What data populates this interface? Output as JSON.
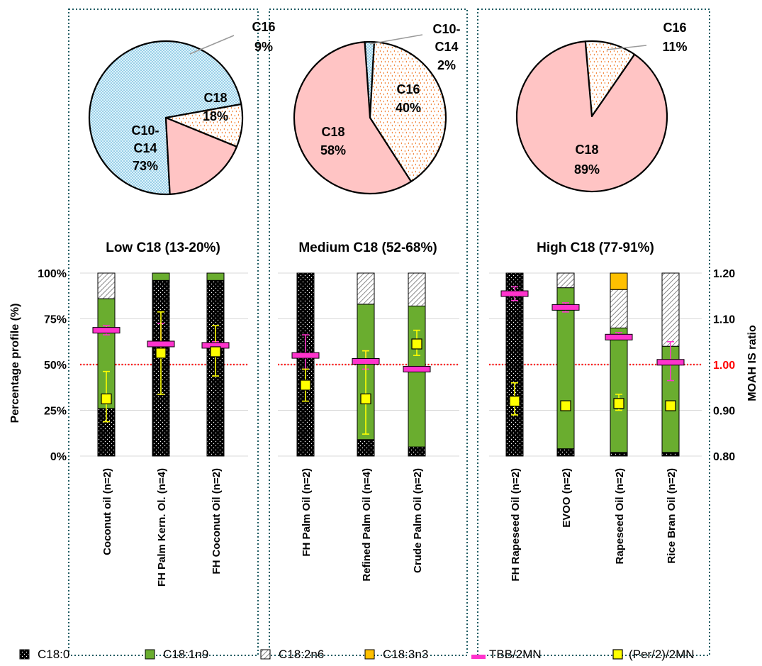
{
  "chart_data": {
    "type": "composite",
    "colors": {
      "C18": "#ffc4c4",
      "C16": "#ffffff",
      "C16_dots": "#f07b2a",
      "C10C14": "#ddf2fb",
      "C10C14_dots": "#4aa8d2",
      "black": "#000000",
      "green": "#6aad2f",
      "hatch": "#7f7f7f",
      "orange": "#ffc000",
      "magenta": "#ff33cc",
      "yellow": "#ffff00",
      "panel_border": "#1f5c63",
      "ref_line": "#ff0000"
    },
    "pies": [
      {
        "slices": [
          {
            "key": "C10C14",
            "label": "C10-\nC14",
            "pct_label": "73%",
            "value": 73
          },
          {
            "key": "C16",
            "label": "C16",
            "pct_label": "9%",
            "value": 9
          },
          {
            "key": "C18",
            "label": "C18",
            "pct_label": "18%",
            "value": 18
          }
        ]
      },
      {
        "slices": [
          {
            "key": "C10C14",
            "label": "C10-\nC14",
            "pct_label": "2%",
            "value": 2
          },
          {
            "key": "C16",
            "label": "C16",
            "pct_label": "40%",
            "value": 40
          },
          {
            "key": "C18",
            "label": "C18",
            "pct_label": "58%",
            "value": 58
          }
        ]
      },
      {
        "slices": [
          {
            "key": "C16",
            "label": "C16",
            "pct_label": "11%",
            "value": 11
          },
          {
            "key": "C18",
            "label": "C18",
            "pct_label": "89%",
            "value": 89
          }
        ]
      }
    ],
    "groups": [
      {
        "title": "Low C18 (13-20%)",
        "bars": [
          {
            "label": "Coconut oil (n=2)",
            "c18_0": 26,
            "c18_1": 60,
            "c18_2": 14,
            "c18_3": 0,
            "tbb": 1.075,
            "tbb_err": [
              1.065,
              1.085
            ],
            "per": 0.925,
            "per_err": [
              0.875,
              0.985
            ]
          },
          {
            "label": "FH Palm Kern. Ol. (n=4)",
            "c18_0": 96,
            "c18_1": 4,
            "c18_2": 0,
            "c18_3": 0,
            "tbb": 1.045,
            "tbb_err": [
              1.025,
              1.09
            ],
            "per": 1.025,
            "per_err": [
              0.935,
              1.115
            ]
          },
          {
            "label": "FH Coconut Oil (n=2)",
            "c18_0": 96,
            "c18_1": 4,
            "c18_2": 0,
            "c18_3": 0,
            "tbb": 1.042,
            "tbb_err": [
              1.035,
              1.05
            ],
            "per": 1.028,
            "per_err": [
              0.975,
              1.085
            ]
          }
        ]
      },
      {
        "title": "Medium C18 (52-68%)",
        "bars": [
          {
            "label": "FH Palm Oil (n=2)",
            "c18_0": 100,
            "c18_1": 0,
            "c18_2": 0,
            "c18_3": 0,
            "tbb": 1.02,
            "tbb_err": [
              0.99,
              1.065
            ],
            "per": 0.955,
            "per_err": [
              0.92,
              0.99
            ]
          },
          {
            "label": "Refined Palm Oil (n=4)",
            "c18_0": 9,
            "c18_1": 74,
            "c18_2": 17,
            "c18_3": 0,
            "tbb": 1.007,
            "tbb_err": [
              0.99,
              1.03
            ],
            "per": 0.925,
            "per_err": [
              0.848,
              1.03
            ]
          },
          {
            "label": "Crude Palm Oil (n=2)",
            "c18_0": 5,
            "c18_1": 77,
            "c18_2": 18,
            "c18_3": 0,
            "tbb": 0.99,
            "tbb_err": [
              0.99,
              0.99
            ],
            "per": 1.045,
            "per_err": [
              1.02,
              1.075
            ]
          }
        ]
      },
      {
        "title": "High C18 (77-91%)",
        "bars": [
          {
            "label": "FH Rapeseed Oil (n=2)",
            "c18_0": 100,
            "c18_1": 0,
            "c18_2": 0,
            "c18_3": 0,
            "tbb": 1.155,
            "tbb_err": [
              1.14,
              1.17
            ],
            "per": 0.92,
            "per_err": [
              0.89,
              0.96
            ]
          },
          {
            "label": "EVOO (n=2)",
            "c18_0": 4,
            "c18_1": 88,
            "c18_2": 8,
            "c18_3": 0,
            "tbb": 1.125,
            "tbb_err": [
              1.115,
              1.135
            ],
            "per": 0.91,
            "per_err": [
              0.91,
              0.91
            ]
          },
          {
            "label": "Rapeseed Oil (n=2)",
            "c18_0": 2,
            "c18_1": 68,
            "c18_2": 21,
            "c18_3": 9,
            "tbb": 1.06,
            "tbb_err": [
              1.055,
              1.07
            ],
            "per": 0.915,
            "per_err": [
              0.9,
              0.935
            ]
          },
          {
            "label": "Rice Bran Oil (n=2)",
            "c18_0": 2,
            "c18_1": 58,
            "c18_2": 40,
            "c18_3": 0,
            "tbb": 1.005,
            "tbb_err": [
              0.965,
              1.05
            ],
            "per": 0.91,
            "per_err": [
              0.91,
              0.91
            ]
          }
        ]
      }
    ],
    "y_left": {
      "label": "Percentage profile (%)",
      "ticks": [
        "0%",
        "25%",
        "50%",
        "75%",
        "100%"
      ],
      "range": [
        0,
        100
      ]
    },
    "y_right": {
      "label": "MOAH IS ratio",
      "ticks": [
        "0.80",
        "0.90",
        "1.00",
        "1.10",
        "1.20"
      ],
      "range": [
        0.8,
        1.2
      ],
      "reference": 1.0
    },
    "legend": [
      {
        "key": "black",
        "label": "C18:0"
      },
      {
        "key": "green",
        "label": "C18:1n9"
      },
      {
        "key": "hatch",
        "label": "C18:2n6"
      },
      {
        "key": "orange",
        "label": "C18:3n3"
      },
      {
        "key": "magenta",
        "label": "TBB/2MN"
      },
      {
        "key": "yellow",
        "label": "(Per/2)/2MN"
      }
    ]
  }
}
